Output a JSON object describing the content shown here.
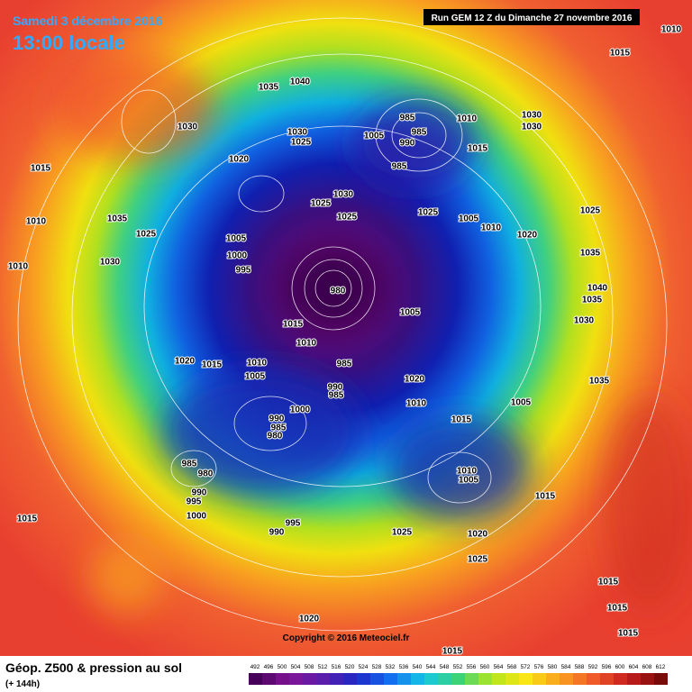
{
  "header": {
    "date": "Samedi 3 décembre 2016",
    "time": "13:00 locale",
    "run": "Run GEM 12 Z du Dimanche 27 novembre 2016"
  },
  "copyright": "Copyright © 2016 Meteociel.fr",
  "footer": {
    "title": "Géop. Z500 & pression au sol",
    "subtitle": "(+ 144h)"
  },
  "scale": [
    492,
    496,
    500,
    504,
    508,
    512,
    516,
    520,
    524,
    528,
    532,
    536,
    540,
    544,
    548,
    552,
    556,
    560,
    564,
    568,
    572,
    576,
    580,
    584,
    588,
    592,
    596,
    600,
    604,
    608,
    612
  ],
  "pressure_labels": [
    1010,
    1015,
    1040,
    1035,
    1030,
    985,
    1010,
    1030,
    985,
    1030,
    1030,
    1025,
    1005,
    990,
    1015,
    1020,
    985,
    1015,
    1030,
    1025,
    1005,
    1010,
    1025,
    1025,
    1025,
    1035,
    1010,
    1025,
    1005,
    1020,
    1000,
    995,
    1030,
    1010,
    1035,
    1040,
    980,
    1005,
    1035,
    1030,
    1015,
    1010,
    1020,
    1015,
    1010,
    1005,
    985,
    1035,
    1020,
    990,
    985,
    1010,
    1005,
    1000,
    990,
    1015,
    985,
    980,
    985,
    980,
    1010,
    1005,
    990,
    995,
    1015,
    1000,
    1015,
    995,
    990,
    1025,
    1020,
    1025,
    1015,
    1015,
    1020,
    1015,
    1015
  ]
}
